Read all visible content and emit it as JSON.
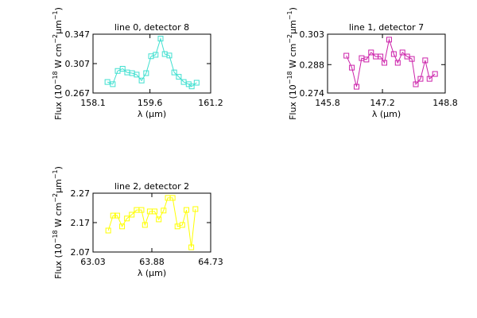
{
  "chart_data": [
    {
      "type": "line",
      "title": "line 0, detector 8",
      "xlabel": "λ (μm)",
      "ylabel": [
        "Flux (10",
        "−18",
        " W cm",
        "−2",
        "μm",
        "−1",
        ")"
      ],
      "xlim": [
        158.1,
        161.2
      ],
      "xticks": [
        158.1,
        159.6,
        161.2
      ],
      "ylim": [
        0.267,
        0.347
      ],
      "yticks": [
        0.267,
        0.307,
        0.347
      ],
      "series": [
        {
          "name": "line 0",
          "color": "#40e0d0",
          "marker": "square",
          "x": [
            158.48,
            158.62,
            158.75,
            158.88,
            159.0,
            159.13,
            159.25,
            159.38,
            159.5,
            159.63,
            159.75,
            159.88,
            159.99,
            160.11,
            160.24,
            160.36,
            160.49,
            160.62,
            160.7,
            160.83
          ],
          "values": [
            0.282,
            0.279,
            0.297,
            0.3,
            0.295,
            0.294,
            0.292,
            0.284,
            0.294,
            0.317,
            0.319,
            0.341,
            0.32,
            0.318,
            0.295,
            0.289,
            0.282,
            0.279,
            0.276,
            0.281
          ]
        }
      ]
    },
    {
      "type": "line",
      "title": "line 1, detector 7",
      "xlabel": "λ (μm)",
      "ylabel": [
        "Flux (10",
        "−18",
        " W cm",
        "−2",
        "μm",
        "−1",
        ")"
      ],
      "xlim": [
        145.8,
        148.8
      ],
      "xticks": [
        145.8,
        147.2,
        148.8
      ],
      "ylim": [
        0.274,
        0.303
      ],
      "yticks": [
        0.274,
        0.288,
        0.303
      ],
      "series": [
        {
          "name": "line 1",
          "color": "#cc22aa",
          "marker": "square",
          "x": [
            146.28,
            146.42,
            146.54,
            146.67,
            146.79,
            146.91,
            147.03,
            147.15,
            147.25,
            147.37,
            147.49,
            147.59,
            147.71,
            147.83,
            147.95,
            148.05,
            148.17,
            148.29,
            148.4,
            148.54
          ],
          "values": [
            0.2924,
            0.2865,
            0.2771,
            0.2912,
            0.2905,
            0.294,
            0.292,
            0.292,
            0.2889,
            0.3003,
            0.2932,
            0.2889,
            0.294,
            0.292,
            0.2908,
            0.2783,
            0.281,
            0.2901,
            0.281,
            0.2834
          ]
        }
      ]
    },
    {
      "type": "line",
      "title": "line 2, detector 2",
      "xlabel": "λ (μm)",
      "ylabel": [
        "Flux (10",
        "−18",
        " W cm",
        "−2",
        "μm",
        "−1",
        ")"
      ],
      "xlim": [
        63.03,
        64.73
      ],
      "xticks": [
        63.03,
        63.88,
        64.73
      ],
      "ylim": [
        2.07,
        2.27
      ],
      "yticks": [
        2.07,
        2.17,
        2.27
      ],
      "series": [
        {
          "name": "line 2",
          "color": "#ffff00",
          "marker": "square",
          "x": [
            63.25,
            63.32,
            63.38,
            63.45,
            63.52,
            63.59,
            63.66,
            63.73,
            63.78,
            63.85,
            63.92,
            63.98,
            64.05,
            64.11,
            64.18,
            64.25,
            64.32,
            64.38,
            64.45,
            64.51
          ],
          "values": [
            2.143,
            2.194,
            2.194,
            2.157,
            2.184,
            2.197,
            2.213,
            2.213,
            2.162,
            2.208,
            2.208,
            2.181,
            2.211,
            2.254,
            2.254,
            2.157,
            2.162,
            2.213,
            2.086,
            2.216
          ]
        }
      ]
    }
  ]
}
